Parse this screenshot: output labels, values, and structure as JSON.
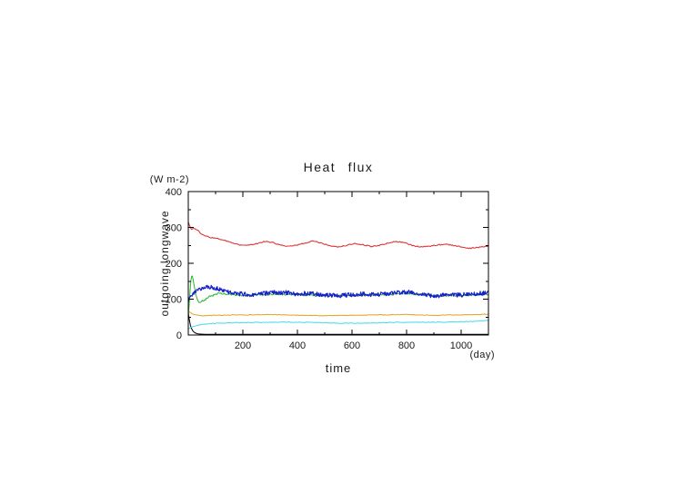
{
  "page": {
    "background_color": "#ffffff",
    "text_color": "#1a1a1a"
  },
  "chart_data": {
    "type": "line",
    "title": "Heat flux",
    "ylabel": "outgoing longwave",
    "y_units_label": "(W m-2)",
    "xlabel": "time",
    "x_units_label": "(day)",
    "xlim": [
      0,
      1100
    ],
    "ylim": [
      0,
      400
    ],
    "x_ticks": [
      200,
      400,
      600,
      800,
      1000
    ],
    "x_minor_ticks": [
      100,
      300,
      500,
      700,
      900,
      1100
    ],
    "y_ticks": [
      0,
      100,
      200,
      300,
      400
    ],
    "y_minor_ticks": [
      50,
      150,
      250,
      350
    ],
    "grid": false,
    "legend": "none",
    "frame_color": "#000000",
    "series": [
      {
        "name": "black-line",
        "color": "#000000",
        "width": 1,
        "noise_amp": 0,
        "step": 4,
        "points": [
          [
            0,
            62
          ],
          [
            4,
            42
          ],
          [
            8,
            26
          ],
          [
            14,
            14
          ],
          [
            22,
            7
          ],
          [
            35,
            3
          ],
          [
            60,
            2
          ],
          [
            1100,
            2
          ]
        ]
      },
      {
        "name": "green-line",
        "color": "#2ab42a",
        "width": 1,
        "noise_amp": 2.5,
        "step": 3,
        "points": [
          [
            0,
            50
          ],
          [
            4,
            95
          ],
          [
            8,
            140
          ],
          [
            11,
            162
          ],
          [
            14,
            168
          ],
          [
            18,
            152
          ],
          [
            24,
            125
          ],
          [
            30,
            105
          ],
          [
            40,
            92
          ],
          [
            55,
            95
          ],
          [
            80,
            108
          ],
          [
            110,
            116
          ],
          [
            150,
            113
          ],
          [
            200,
            110
          ],
          [
            300,
            114
          ],
          [
            400,
            112
          ],
          [
            500,
            109
          ],
          [
            600,
            110
          ],
          [
            700,
            112
          ],
          [
            800,
            116
          ],
          [
            900,
            110
          ],
          [
            1000,
            110
          ],
          [
            1100,
            113
          ]
        ]
      },
      {
        "name": "orange-line",
        "color": "#dfa320",
        "width": 1,
        "noise_amp": 0.9,
        "step": 5,
        "points": [
          [
            0,
            68
          ],
          [
            10,
            61
          ],
          [
            25,
            56
          ],
          [
            50,
            53
          ],
          [
            100,
            55
          ],
          [
            200,
            56
          ],
          [
            300,
            57
          ],
          [
            400,
            55
          ],
          [
            500,
            54
          ],
          [
            600,
            55
          ],
          [
            700,
            56
          ],
          [
            800,
            57
          ],
          [
            900,
            55
          ],
          [
            1000,
            56
          ],
          [
            1100,
            58
          ]
        ]
      },
      {
        "name": "cyan-line",
        "color": "#3fd9ec",
        "width": 1,
        "noise_amp": 0.9,
        "step": 5,
        "points": [
          [
            0,
            17
          ],
          [
            15,
            23
          ],
          [
            40,
            28
          ],
          [
            80,
            32
          ],
          [
            150,
            34
          ],
          [
            250,
            35
          ],
          [
            350,
            36
          ],
          [
            450,
            35
          ],
          [
            550,
            33
          ],
          [
            650,
            33
          ],
          [
            750,
            35
          ],
          [
            850,
            36
          ],
          [
            950,
            36
          ],
          [
            1050,
            38
          ],
          [
            1100,
            41
          ]
        ]
      },
      {
        "name": "red-line",
        "color": "#e03535",
        "width": 1.1,
        "noise_amp": 1.4,
        "step": 4,
        "points": [
          [
            0,
            316
          ],
          [
            6,
            300
          ],
          [
            14,
            294
          ],
          [
            22,
            298
          ],
          [
            30,
            295
          ],
          [
            45,
            284
          ],
          [
            60,
            277
          ],
          [
            80,
            272
          ],
          [
            100,
            270
          ],
          [
            130,
            265
          ],
          [
            160,
            257
          ],
          [
            190,
            251
          ],
          [
            220,
            250
          ],
          [
            250,
            255
          ],
          [
            280,
            261
          ],
          [
            310,
            258
          ],
          [
            340,
            250
          ],
          [
            370,
            247
          ],
          [
            400,
            251
          ],
          [
            430,
            257
          ],
          [
            460,
            262
          ],
          [
            490,
            256
          ],
          [
            520,
            248
          ],
          [
            550,
            246
          ],
          [
            580,
            250
          ],
          [
            610,
            255
          ],
          [
            640,
            252
          ],
          [
            670,
            247
          ],
          [
            700,
            250
          ],
          [
            730,
            256
          ],
          [
            760,
            261
          ],
          [
            790,
            258
          ],
          [
            820,
            250
          ],
          [
            850,
            246
          ],
          [
            880,
            247
          ],
          [
            910,
            251
          ],
          [
            940,
            253
          ],
          [
            970,
            250
          ],
          [
            1000,
            246
          ],
          [
            1030,
            242
          ],
          [
            1060,
            244
          ],
          [
            1100,
            248
          ]
        ]
      },
      {
        "name": "blue-line",
        "color": "#1520c8",
        "width": 1.2,
        "noise_amp": 6,
        "step": 2,
        "points": [
          [
            0,
            95
          ],
          [
            8,
            108
          ],
          [
            16,
            116
          ],
          [
            30,
            124
          ],
          [
            50,
            131
          ],
          [
            70,
            134
          ],
          [
            90,
            133
          ],
          [
            110,
            129
          ],
          [
            130,
            124
          ],
          [
            160,
            118
          ],
          [
            200,
            114
          ],
          [
            240,
            112
          ],
          [
            280,
            116
          ],
          [
            320,
            119
          ],
          [
            360,
            118
          ],
          [
            400,
            114
          ],
          [
            440,
            117
          ],
          [
            480,
            113
          ],
          [
            520,
            110
          ],
          [
            560,
            110
          ],
          [
            600,
            112
          ],
          [
            640,
            114
          ],
          [
            680,
            113
          ],
          [
            720,
            115
          ],
          [
            760,
            118
          ],
          [
            800,
            120
          ],
          [
            840,
            116
          ],
          [
            880,
            111
          ],
          [
            920,
            110
          ],
          [
            960,
            112
          ],
          [
            1000,
            112
          ],
          [
            1040,
            114
          ],
          [
            1080,
            117
          ],
          [
            1100,
            118
          ]
        ]
      }
    ]
  }
}
